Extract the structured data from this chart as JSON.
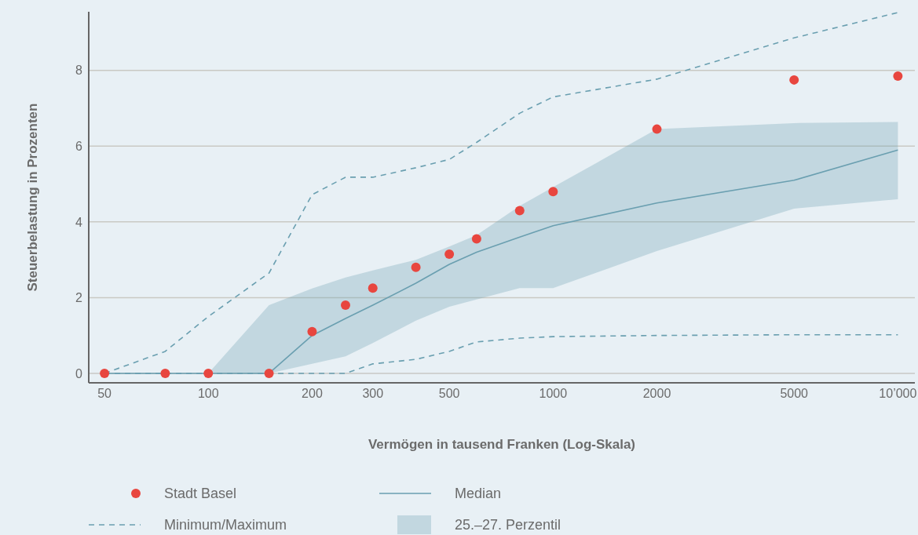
{
  "chart_data": {
    "type": "line",
    "xlabel": "Vermögen in tausend Franken (Log-Skala)",
    "ylabel": "Steuerbelastung in Prozenten",
    "log": "x",
    "annotations": [
      "25.–27. Perzentil"
    ],
    "grid": "y",
    "legend": "bottom",
    "xlim": [
      45,
      11200
    ],
    "xticks": [
      50,
      100,
      200,
      300,
      500,
      1000,
      2000,
      5000,
      {
        "value": 10000,
        "label": "10’000"
      }
    ],
    "ylim": [
      -0.25,
      9.55
    ],
    "yticks": [
      0,
      2,
      4,
      6,
      8
    ],
    "x": [
      50,
      75,
      100,
      150,
      200,
      250,
      300,
      400,
      500,
      600,
      800,
      1000,
      2000,
      5000,
      10000
    ],
    "series": [
      {
        "name": "Stadt Basel",
        "type": "scatter",
        "marker": "circle",
        "color": "#e8463f",
        "values": [
          0,
          0,
          0,
          0,
          1.1,
          1.8,
          2.25,
          2.8,
          3.15,
          3.55,
          4.3,
          4.8,
          6.45,
          7.75,
          7.85
        ]
      },
      {
        "name": "Median",
        "line_style": "solid",
        "color": "#6a9fb0",
        "values": [
          0,
          0,
          0,
          0,
          1.0,
          1.45,
          1.8,
          2.38,
          2.88,
          3.2,
          3.6,
          3.9,
          4.5,
          5.1,
          5.9
        ],
        "lower": [
          null,
          null,
          0,
          0,
          0.25,
          0.45,
          0.8,
          1.39,
          1.76,
          1.95,
          2.25,
          2.25,
          3.23,
          4.35,
          4.6
        ],
        "upper": [
          null,
          null,
          0,
          1.8,
          2.24,
          2.53,
          2.72,
          3.0,
          3.35,
          3.65,
          4.42,
          4.92,
          6.45,
          6.61,
          6.64
        ]
      },
      {
        "name": "Minimum/Maximum",
        "line_style": "dashed",
        "color": "#6a9fb0",
        "values": [
          0,
          0.58,
          1.5,
          2.65,
          4.72,
          5.18,
          5.18,
          5.43,
          5.65,
          6.1,
          6.87,
          7.3,
          7.77,
          8.86,
          9.53
        ]
      },
      {
        "line_style": "dashed",
        "color": "#6a9fb0",
        "values": [
          0,
          0,
          0,
          0,
          0,
          0,
          0.25,
          0.37,
          0.58,
          0.83,
          0.93,
          0.97,
          1.0,
          1.02,
          1.02
        ]
      }
    ]
  }
}
